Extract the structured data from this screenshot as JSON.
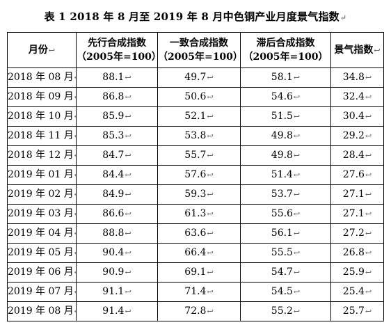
{
  "title": "表 1  2018 年 8 月至 2019 年 8 月中色铜产业月度景气指数",
  "para_mark": "↵",
  "cell_mark": "↩",
  "columns": [
    {
      "line1": "月份",
      "line2": ""
    },
    {
      "line1": "先行合成指数",
      "line2": "（2005年=100）"
    },
    {
      "line1": "一致合成指数",
      "line2": "（2005年=100）"
    },
    {
      "line1": "滞后合成指数",
      "line2": "（2005年=100）"
    },
    {
      "line1": "景气指数",
      "line2": ""
    }
  ],
  "rows": [
    {
      "month": "2018 年 08 月",
      "leading": "88.1",
      "coincident": "49.7",
      "lagging": "58.1",
      "climate": "34.8"
    },
    {
      "month": "2018 年 09 月",
      "leading": "86.8",
      "coincident": "50.6",
      "lagging": "54.6",
      "climate": "32.4"
    },
    {
      "month": "2018 年 10 月",
      "leading": "85.9",
      "coincident": "52.1",
      "lagging": "51.5",
      "climate": "30.4"
    },
    {
      "month": "2018 年 11 月",
      "leading": "85.3",
      "coincident": "53.8",
      "lagging": "49.8",
      "climate": "29.2"
    },
    {
      "month": "2018 年 12 月",
      "leading": "84.7",
      "coincident": "55.7",
      "lagging": "49.8",
      "climate": "28.4"
    },
    {
      "month": "2019 年 01 月",
      "leading": "84.4",
      "coincident": "57.6",
      "lagging": "51.4",
      "climate": "27.6"
    },
    {
      "month": "2019 年 02 月",
      "leading": "84.9",
      "coincident": "59.3",
      "lagging": "53.7",
      "climate": "27.1"
    },
    {
      "month": "2019 年 03 月",
      "leading": "86.6",
      "coincident": "61.3",
      "lagging": "55.6",
      "climate": "27.1"
    },
    {
      "month": "2019 年 04 月",
      "leading": "88.8",
      "coincident": "63.6",
      "lagging": "56.1",
      "climate": "27.2"
    },
    {
      "month": "2019 年 05 月",
      "leading": "90.4",
      "coincident": "66.4",
      "lagging": "55.5",
      "climate": "26.8"
    },
    {
      "month": "2019 年 06 月",
      "leading": "90.9",
      "coincident": "69.1",
      "lagging": "54.7",
      "climate": "25.9"
    },
    {
      "month": "2019 年 07 月",
      "leading": "91.1",
      "coincident": "71.4",
      "lagging": "54.5",
      "climate": "25.4"
    },
    {
      "month": "2019 年 08 月",
      "leading": "91.4",
      "coincident": "72.8",
      "lagging": "55.2",
      "climate": "25.7"
    }
  ]
}
